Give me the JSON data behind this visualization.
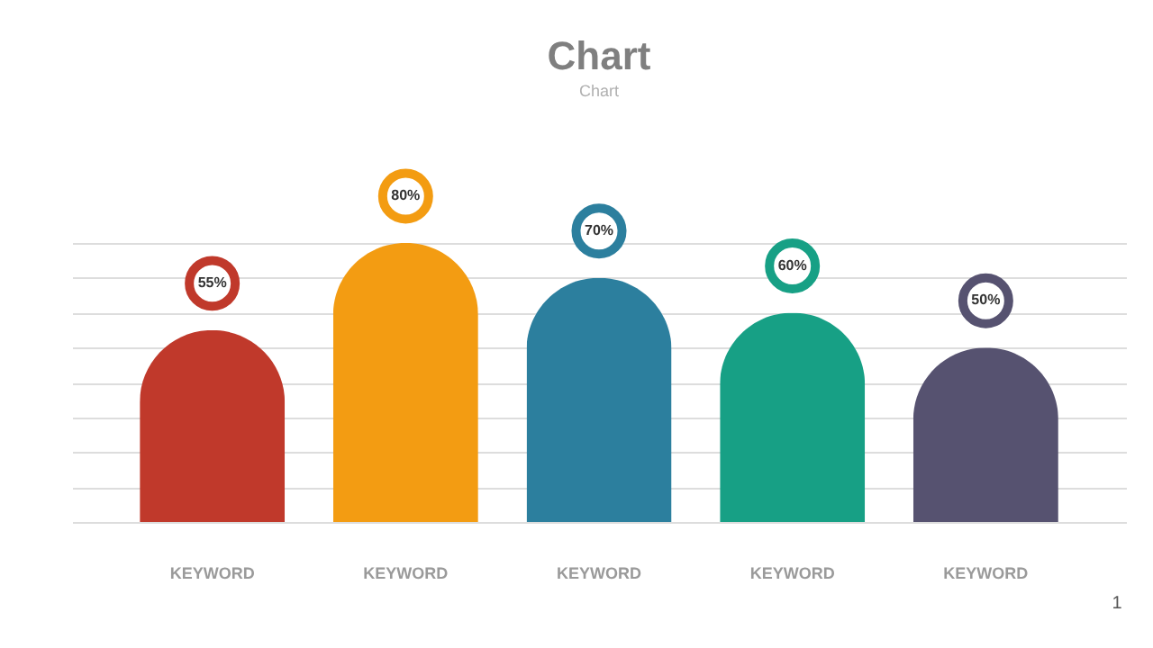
{
  "chart_data": {
    "type": "bar",
    "title": "Chart",
    "subtitle": "Chart",
    "categories": [
      "KEYWORD",
      "KEYWORD",
      "KEYWORD",
      "KEYWORD",
      "KEYWORD"
    ],
    "values": [
      55,
      80,
      70,
      60,
      50
    ],
    "colors": [
      "#c0392b",
      "#f39c12",
      "#2c7f9e",
      "#17a085",
      "#565270"
    ],
    "value_labels": [
      "55%",
      "80%",
      "70%",
      "60%",
      "50%"
    ],
    "grid": "y",
    "tick_labels": "x",
    "annotations": [
      "1"
    ]
  }
}
